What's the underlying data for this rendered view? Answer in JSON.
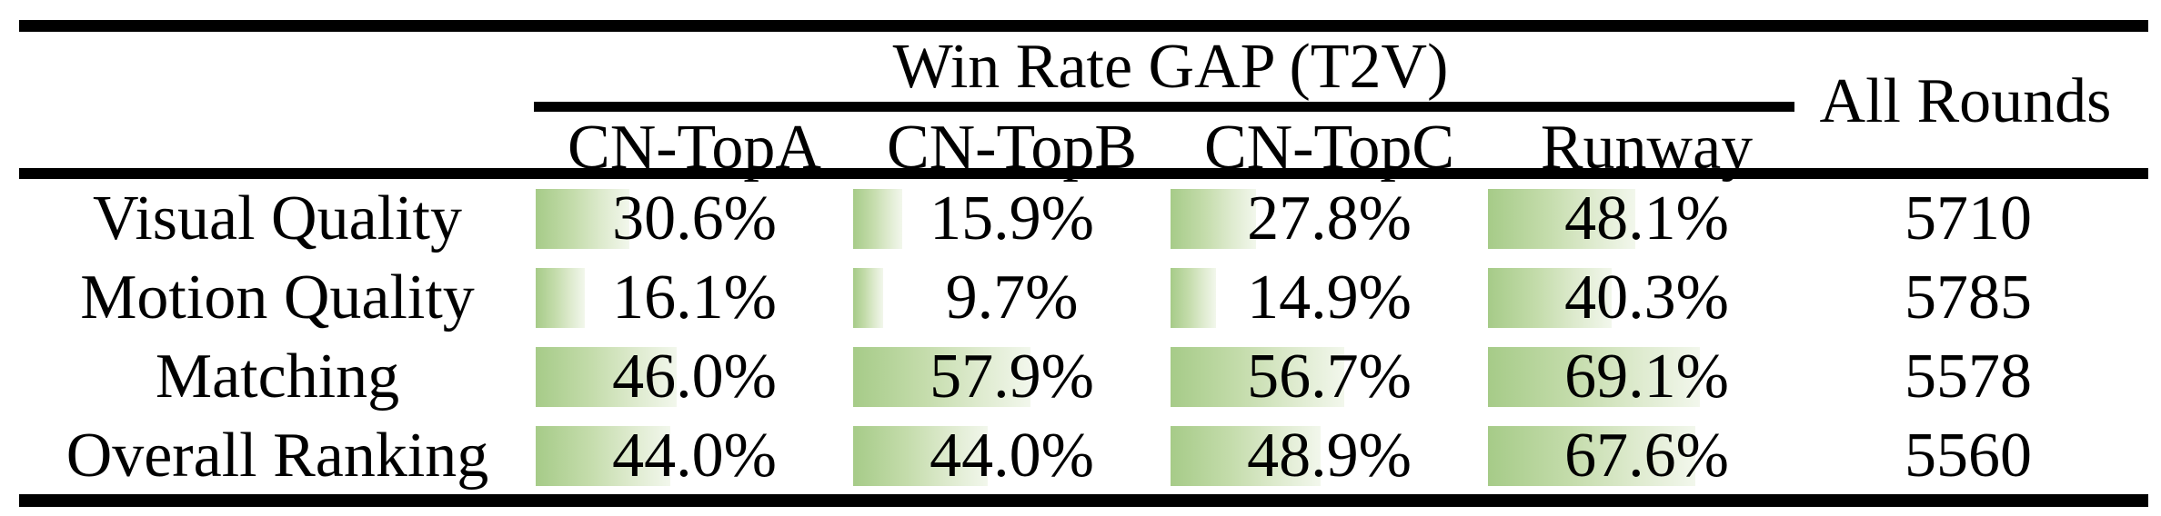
{
  "table": {
    "group_header": "Win Rate GAP (T2V)",
    "all_rounds_header": "All Rounds",
    "columns": [
      "CN-TopA",
      "CN-TopB",
      "CN-TopC",
      "Runway"
    ],
    "rows": [
      {
        "label": "Visual Quality",
        "values": [
          30.6,
          15.9,
          27.8,
          48.1
        ],
        "displays": [
          "30.6%",
          "15.9%",
          "27.8%",
          "48.1%"
        ],
        "all_rounds": "5710"
      },
      {
        "label": "Motion Quality",
        "values": [
          16.1,
          9.7,
          14.9,
          40.3
        ],
        "displays": [
          "16.1%",
          "9.7%",
          "14.9%",
          "40.3%"
        ],
        "all_rounds": "5785"
      },
      {
        "label": "Matching",
        "values": [
          46.0,
          57.9,
          56.7,
          69.1
        ],
        "displays": [
          "46.0%",
          "57.9%",
          "56.7%",
          "69.1%"
        ],
        "all_rounds": "5578"
      },
      {
        "label": "Overall Ranking",
        "values": [
          44.0,
          44.0,
          48.9,
          67.6
        ],
        "displays": [
          "44.0%",
          "44.0%",
          "48.9%",
          "67.6%"
        ],
        "all_rounds": "5560"
      }
    ]
  },
  "colors": {
    "bar_green": "#a6cb88",
    "bar_fade": "#f2f7ec",
    "rule_black": "#000000"
  },
  "chart_data": {
    "type": "table",
    "title": "Win Rate GAP (T2V)",
    "categories": [
      "Visual Quality",
      "Motion Quality",
      "Matching",
      "Overall Ranking"
    ],
    "series": [
      {
        "name": "CN-TopA",
        "values": [
          30.6,
          16.1,
          46.0,
          44.0
        ]
      },
      {
        "name": "CN-TopB",
        "values": [
          15.9,
          9.7,
          57.9,
          44.0
        ]
      },
      {
        "name": "CN-TopC",
        "values": [
          27.8,
          14.9,
          56.7,
          48.9
        ]
      },
      {
        "name": "Runway",
        "values": [
          48.1,
          40.3,
          69.1,
          67.6
        ]
      },
      {
        "name": "All Rounds",
        "values": [
          5710,
          5785,
          5578,
          5560
        ]
      }
    ],
    "unit": "%",
    "layout_hints": "percent cells have left-aligned green gradient data bars proportional to value"
  }
}
